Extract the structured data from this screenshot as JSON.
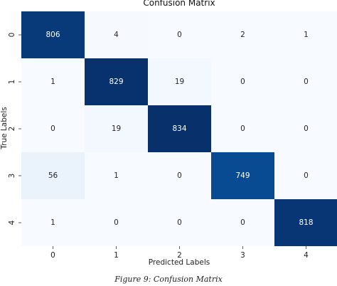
{
  "chart_data": {
    "type": "heatmap",
    "title": "Confusion Matrix",
    "xlabel": "Predicted Labels",
    "ylabel": "True Labels",
    "x_categories": [
      "0",
      "1",
      "2",
      "3",
      "4"
    ],
    "y_categories": [
      "0",
      "1",
      "2",
      "3",
      "4"
    ],
    "values": [
      [
        806,
        4,
        0,
        2,
        1
      ],
      [
        1,
        829,
        19,
        0,
        0
      ],
      [
        0,
        19,
        834,
        0,
        0
      ],
      [
        56,
        1,
        0,
        749,
        0
      ],
      [
        1,
        0,
        0,
        0,
        818
      ]
    ],
    "colormap": "Blues",
    "color_low": "#f7fbff",
    "color_high": "#08306b",
    "grid": false
  },
  "caption": "Figure 9: Confusion Matrix"
}
